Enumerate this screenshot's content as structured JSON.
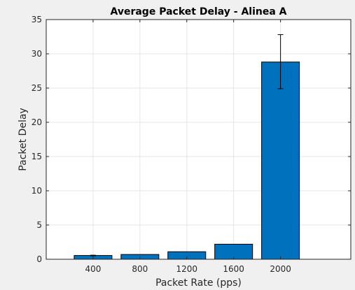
{
  "chart_data": {
    "type": "bar",
    "title": "Average Packet Delay - Alinea A",
    "xlabel": "Packet Rate (pps)",
    "ylabel": "Packet Delay",
    "categories": [
      "400",
      "800",
      "1200",
      "1600",
      "2000"
    ],
    "x": [
      400,
      800,
      1200,
      1600,
      2000
    ],
    "values": [
      0.55,
      0.7,
      1.1,
      2.2,
      28.8
    ],
    "error_low": [
      0.5,
      0.7,
      1.1,
      2.2,
      24.9
    ],
    "error_high": [
      0.6,
      0.7,
      1.1,
      2.2,
      32.8
    ],
    "xlim": [
      0,
      2600
    ],
    "ylim": [
      0,
      35
    ],
    "yticks": [
      0,
      5,
      10,
      15,
      20,
      25,
      30,
      35
    ],
    "grid": true,
    "bar_color": "#0072BD",
    "background": "#f0f0f0",
    "plot_background": "#ffffff"
  }
}
